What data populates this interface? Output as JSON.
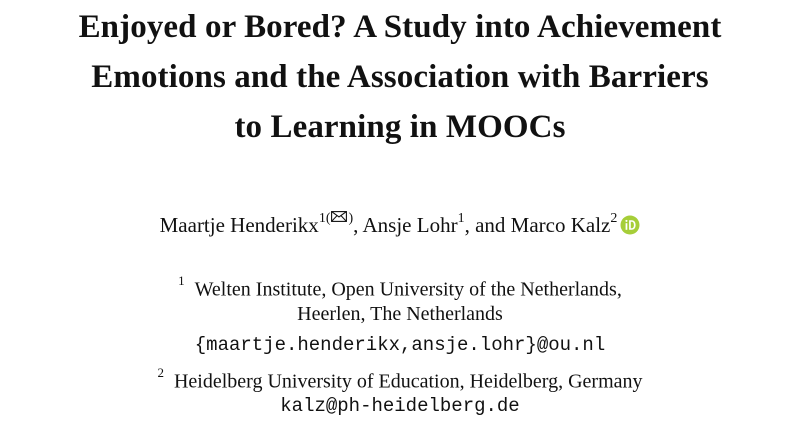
{
  "paper": {
    "title_lines": [
      "Enjoyed or Bored? A Study into Achievement",
      "Emotions and the Association with Barriers",
      "to Learning in MOOCs"
    ],
    "authors": [
      {
        "name": "Maartje Henderikx",
        "sup": "1(",
        "sup_close": ")",
        "separator": ", "
      },
      {
        "name": "Ansje Lohr",
        "sup": "1",
        "separator": ", and "
      },
      {
        "name": "Marco Kalz",
        "sup": "2"
      }
    ],
    "affiliations": [
      {
        "number": "1",
        "lines": [
          "Welten Institute, Open University of the Netherlands,",
          "Heerlen, The Netherlands"
        ],
        "email": "{maartje.henderikx,ansje.lohr}@ou.nl"
      },
      {
        "number": "2",
        "lines": [
          "Heidelberg University of Education, Heidelberg, Germany"
        ],
        "email": "kalz@ph-heidelberg.de"
      }
    ],
    "icons": {
      "corresponding": "envelope-icon",
      "orcid": "orcid-icon",
      "orcid_color": "#a6ce39"
    }
  }
}
